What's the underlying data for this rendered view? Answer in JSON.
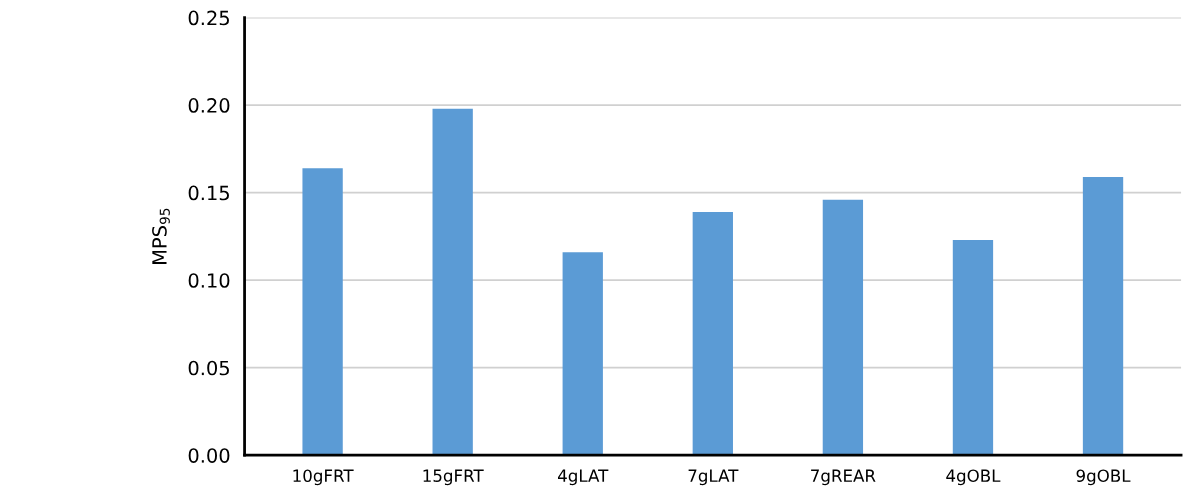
{
  "chart_data": {
    "type": "bar",
    "ylabel": "MPS$_{95}$",
    "categories": [
      "10gFRT",
      "15gFRT",
      "4gLAT",
      "7gLAT",
      "7gREAR",
      "4gOBL",
      "9gOBL"
    ],
    "values": [
      0.164,
      0.198,
      0.116,
      0.139,
      0.146,
      0.123,
      0.159
    ],
    "color": "#5b9bd5",
    "ylim": [
      0,
      0.25
    ],
    "yticks": [
      {
        "value": 0,
        "label": "0.00"
      },
      {
        "value": 0.05,
        "label": "0.05"
      },
      {
        "value": 0.1,
        "label": "0.10"
      },
      {
        "value": 0.15,
        "label": "0.15"
      },
      {
        "value": 0.2,
        "label": "0.20"
      },
      {
        "value": 0.25,
        "label": "0.25"
      }
    ],
    "grid": "y"
  }
}
